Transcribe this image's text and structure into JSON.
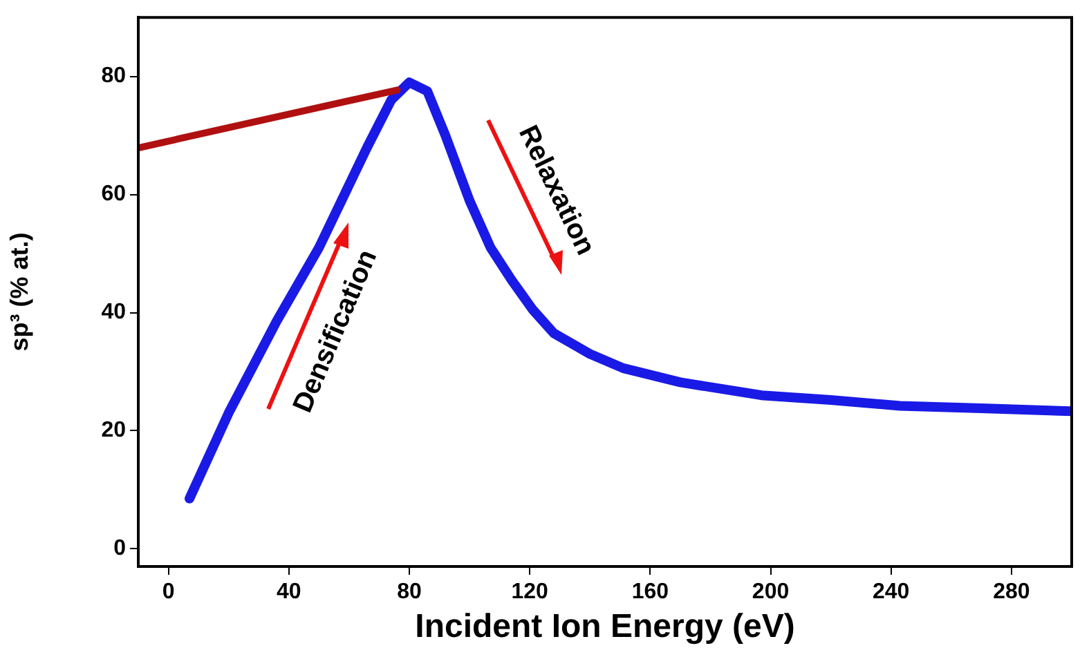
{
  "chart_data": {
    "type": "line",
    "xlabel": "Incident Ion Energy (eV)",
    "ylabel": "sp³ (% at.)",
    "x": [
      7,
      20,
      36,
      50,
      66,
      74,
      80,
      86,
      92,
      100,
      107,
      114,
      121,
      128,
      140,
      151,
      170,
      197,
      220,
      243,
      270,
      300
    ],
    "series": [
      {
        "color": "#b01010",
        "x": [
          -10,
          76
        ],
        "values": [
          67.9,
          77.7
        ]
      },
      {
        "color": "#1a1ae6",
        "values": [
          8.5,
          23,
          38.6,
          51,
          68,
          76,
          79,
          77.5,
          70,
          59,
          51,
          45.5,
          40.5,
          36.5,
          33,
          30.6,
          28.2,
          26,
          25.2,
          24.2,
          23.8,
          23.3
        ]
      }
    ],
    "xlim": [
      -10,
      300
    ],
    "ylim": [
      -3,
      90
    ],
    "xticks": [
      0,
      40,
      80,
      120,
      160,
      200,
      240,
      280
    ],
    "yticks": [
      0,
      20,
      40,
      60,
      80
    ],
    "grid": false,
    "legend": false,
    "marker": "none",
    "line_style": "solid",
    "annotations": [
      "Densification",
      "Relaxation"
    ]
  }
}
